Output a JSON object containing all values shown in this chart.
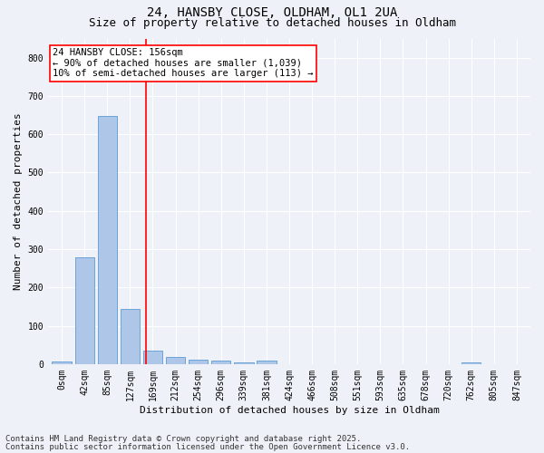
{
  "title1": "24, HANSBY CLOSE, OLDHAM, OL1 2UA",
  "title2": "Size of property relative to detached houses in Oldham",
  "xlabel": "Distribution of detached houses by size in Oldham",
  "ylabel": "Number of detached properties",
  "footnote1": "Contains HM Land Registry data © Crown copyright and database right 2025.",
  "footnote2": "Contains public sector information licensed under the Open Government Licence v3.0.",
  "bin_labels": [
    "0sqm",
    "42sqm",
    "85sqm",
    "127sqm",
    "169sqm",
    "212sqm",
    "254sqm",
    "296sqm",
    "339sqm",
    "381sqm",
    "424sqm",
    "466sqm",
    "508sqm",
    "551sqm",
    "593sqm",
    "635sqm",
    "678sqm",
    "720sqm",
    "762sqm",
    "805sqm",
    "847sqm"
  ],
  "bar_values": [
    7,
    278,
    648,
    143,
    35,
    18,
    11,
    8,
    4,
    10,
    0,
    0,
    0,
    0,
    0,
    0,
    0,
    0,
    5,
    0,
    0
  ],
  "bar_color": "#aec6e8",
  "bar_edge_color": "#5b9bd5",
  "vline_color": "red",
  "annotation_title": "24 HANSBY CLOSE: 156sqm",
  "annotation_line2": "← 90% of detached houses are smaller (1,039)",
  "annotation_line3": "10% of semi-detached houses are larger (113) →",
  "annotation_box_color": "red",
  "ylim": [
    0,
    850
  ],
  "yticks": [
    0,
    100,
    200,
    300,
    400,
    500,
    600,
    700,
    800
  ],
  "background_color": "#eef2f8",
  "grid_color": "#ffffff",
  "title_fontsize": 10,
  "subtitle_fontsize": 9,
  "axis_label_fontsize": 8,
  "tick_fontsize": 7,
  "annotation_fontsize": 7.5,
  "footnote_fontsize": 6.5
}
